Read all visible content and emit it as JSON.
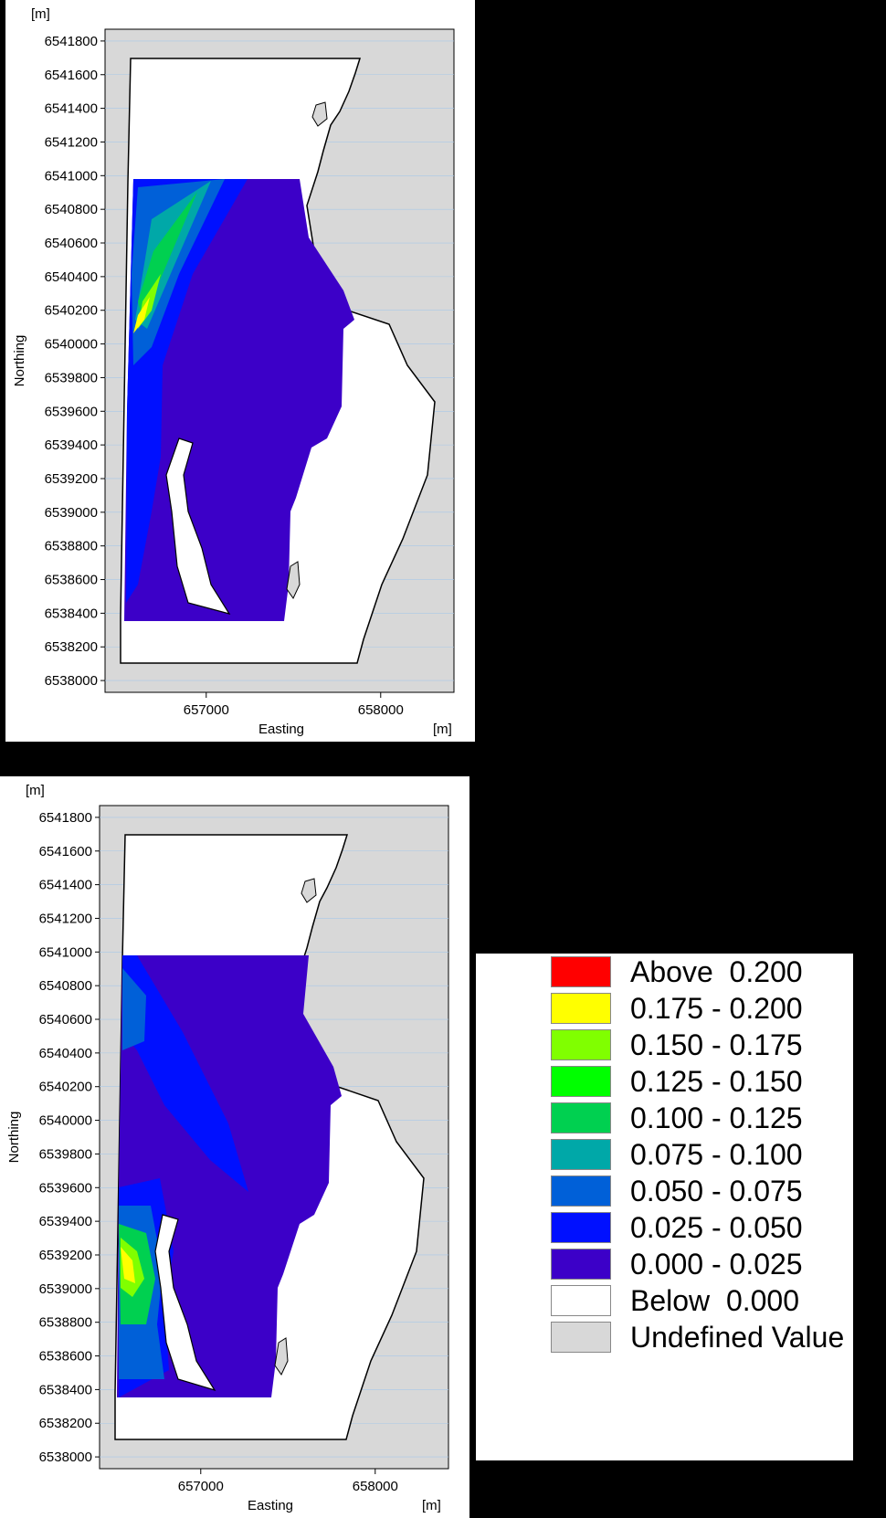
{
  "maps": [
    {
      "id": "top",
      "unit_label": "[m]",
      "x_unit_label": "[m]",
      "xlabel": "Easting",
      "ylabel": "Northing",
      "y_ticks": [
        6541800,
        6541600,
        6541400,
        6541200,
        6541000,
        6540800,
        6540600,
        6540400,
        6540200,
        6540000,
        6539800,
        6539600,
        6539400,
        6539200,
        6539000,
        6538800,
        6538600,
        6538400,
        6538200,
        6538000
      ],
      "x_ticks": [
        657000,
        658000
      ],
      "xlim": [
        656420,
        658420
      ],
      "ylim": [
        6537930,
        6541870
      ]
    },
    {
      "id": "bottom",
      "unit_label": "[m]",
      "x_unit_label": "[m]",
      "xlabel": "Easting",
      "ylabel": "Northing",
      "y_ticks": [
        6541800,
        6541600,
        6541400,
        6541200,
        6541000,
        6540800,
        6540600,
        6540400,
        6540200,
        6540000,
        6539800,
        6539600,
        6539400,
        6539200,
        6539000,
        6538800,
        6538600,
        6538400,
        6538200,
        6538000
      ],
      "x_ticks": [
        657000,
        658000
      ],
      "xlim": [
        656420,
        658420
      ],
      "ylim": [
        6537930,
        6541870
      ]
    }
  ],
  "legend": {
    "items": [
      {
        "label": "Above  0.200",
        "color": "#ff0000"
      },
      {
        "label": "0.175 - 0.200",
        "color": "#ffff00"
      },
      {
        "label": "0.150 - 0.175",
        "color": "#80ff00"
      },
      {
        "label": "0.125 - 0.150",
        "color": "#00ff00"
      },
      {
        "label": "0.100 - 0.125",
        "color": "#00d050"
      },
      {
        "label": "0.075 - 0.100",
        "color": "#00a8a8"
      },
      {
        "label": "0.050 - 0.075",
        "color": "#0060d8"
      },
      {
        "label": "0.025 - 0.050",
        "color": "#0010ff"
      },
      {
        "label": "0.000 - 0.025",
        "color": "#3c00c8"
      },
      {
        "label": "Below  0.000",
        "color": "#ffffff"
      },
      {
        "label": "Undefined Value",
        "color": "#d8d8d8"
      }
    ]
  }
}
